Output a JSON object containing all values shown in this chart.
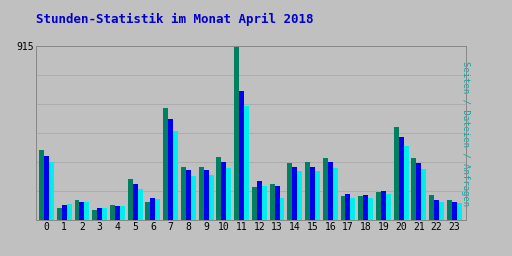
{
  "title": "Stunden-Statistik im Monat April 2018",
  "y_max": 915,
  "background_color": "#c0c0c0",
  "hours": [
    0,
    1,
    2,
    3,
    4,
    5,
    6,
    7,
    8,
    9,
    10,
    11,
    12,
    13,
    14,
    15,
    16,
    17,
    18,
    19,
    20,
    21,
    22,
    23
  ],
  "series_green": [
    370,
    62,
    108,
    52,
    80,
    218,
    97,
    590,
    278,
    280,
    330,
    915,
    172,
    190,
    302,
    305,
    328,
    128,
    128,
    148,
    490,
    328,
    133,
    108
  ],
  "series_blue": [
    338,
    78,
    93,
    62,
    76,
    192,
    118,
    530,
    262,
    262,
    308,
    678,
    208,
    182,
    282,
    282,
    308,
    138,
    133,
    152,
    438,
    298,
    104,
    98
  ],
  "series_cyan": [
    306,
    86,
    98,
    66,
    72,
    165,
    113,
    470,
    232,
    238,
    272,
    598,
    182,
    114,
    258,
    258,
    272,
    118,
    118,
    138,
    392,
    268,
    93,
    88
  ],
  "color_green": "#008060",
  "color_blue": "#0000ee",
  "color_cyan": "#00eeee",
  "title_color": "#0000cc",
  "grid_color": "#aaaaaa",
  "right_label": "Seiten / Dateien / Anfragen",
  "right_label_color": "#00aaaa",
  "bar_width": 0.28
}
